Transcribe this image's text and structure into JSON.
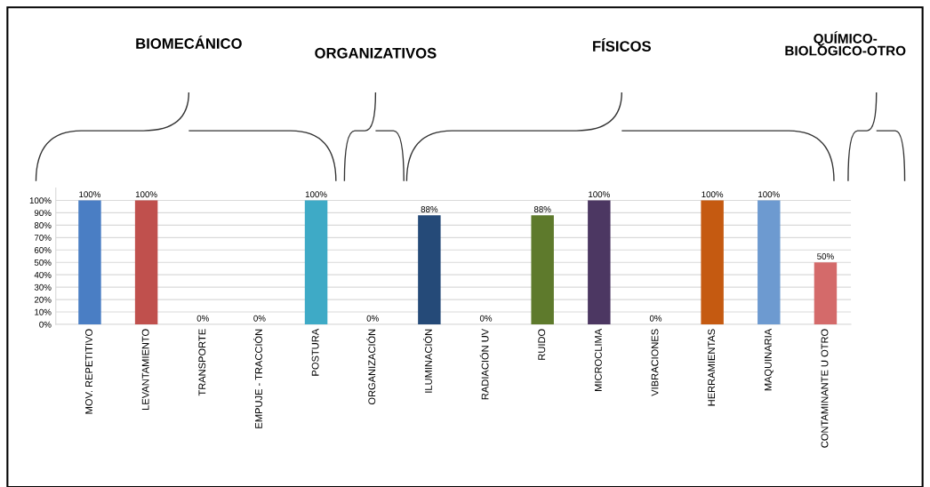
{
  "chart_data": {
    "type": "bar",
    "categories": [
      "MOV. REPETITIVO",
      "LEVANTAMIENTO",
      "TRANSPORTE",
      "EMPUJE - TRACCIÓN",
      "POSTURA",
      "ORGANIZACIÓN",
      "ILUMINACIÓN",
      "RADIACIÓN UV",
      "RUIDO",
      "MICROCLIMA",
      "VIBRACIONES",
      "HERRAMIENTAS",
      "MAQUINARIA",
      "CONTAMINANTE U OTRO"
    ],
    "values": [
      100,
      100,
      0,
      0,
      100,
      0,
      88,
      0,
      88,
      100,
      0,
      100,
      100,
      50
    ],
    "value_labels": [
      "100%",
      "100%",
      "0%",
      "0%",
      "100%",
      "0%",
      "88%",
      "0%",
      "88%",
      "100%",
      "0%",
      "100%",
      "100%",
      "50%"
    ],
    "colors": [
      "#4a7ec4",
      "#c0504d",
      "#77933c",
      "#604a7b",
      "#3eaac6",
      "#c66f2c",
      "#254a78",
      "#6b2224",
      "#5e7a2c",
      "#4c3762",
      "#215a68",
      "#c55a11",
      "#6d9ad0",
      "#d46a6a"
    ],
    "ylim": [
      0,
      110
    ],
    "yticks": [
      {
        "value": 0,
        "label": "0%"
      },
      {
        "value": 10,
        "label": "10%"
      },
      {
        "value": 20,
        "label": "20%"
      },
      {
        "value": 30,
        "label": "30%"
      },
      {
        "value": 40,
        "label": "40%"
      },
      {
        "value": 50,
        "label": "50%"
      },
      {
        "value": 60,
        "label": "60%"
      },
      {
        "value": 70,
        "label": "70%"
      },
      {
        "value": 80,
        "label": "80%"
      },
      {
        "value": 90,
        "label": "90%"
      },
      {
        "value": 100,
        "label": "100%"
      }
    ],
    "grid": "y",
    "annotations": [
      "BIOMECÁNICO",
      "ORGANIZATIVOS",
      "FÍSICOS",
      "QUÍMICO-\nBIOLÓGICO-OTRO"
    ]
  }
}
